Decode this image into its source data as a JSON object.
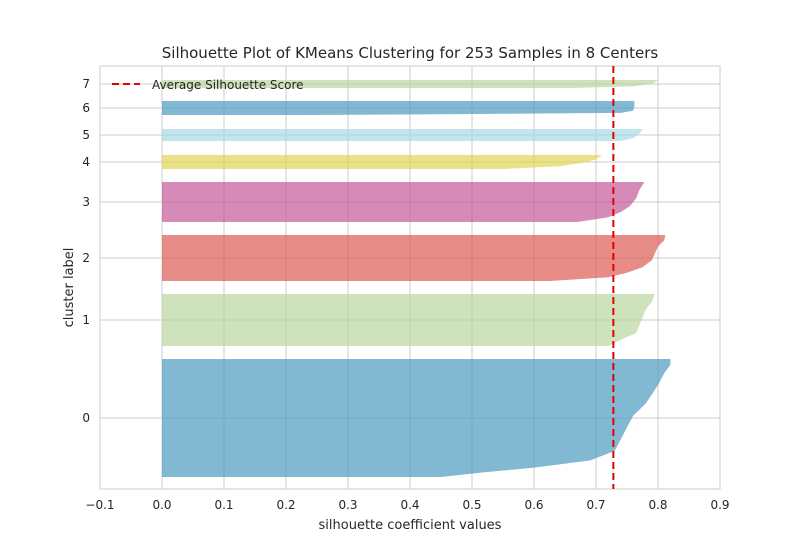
{
  "chart_data": {
    "type": "silhouette",
    "title": "Silhouette Plot of KMeans Clustering for 253 Samples in 8 Centers",
    "xlabel": "silhouette coefficient values",
    "ylabel": "cluster label",
    "xlim": [
      -0.1,
      0.9
    ],
    "xticks": [
      -0.1,
      0.0,
      0.1,
      0.2,
      0.3,
      0.4,
      0.5,
      0.6,
      0.7,
      0.8,
      0.9
    ],
    "xtick_labels": [
      "−0.1",
      "0.0",
      "0.1",
      "0.2",
      "0.3",
      "0.4",
      "0.5",
      "0.6",
      "0.7",
      "0.8",
      "0.9"
    ],
    "grid": true,
    "average_silhouette_score": 0.728,
    "legend": {
      "position": "top-left",
      "entries": [
        {
          "label": "Average Silhouette Score",
          "color": "#e50000",
          "style": "dashed"
        }
      ]
    },
    "clusters": [
      {
        "label": "0",
        "color": "#4c9bc0",
        "min": 0.45,
        "max": 0.82,
        "profile": [
          [
            0,
            0.82
          ],
          [
            0.05,
            0.82
          ],
          [
            0.12,
            0.81
          ],
          [
            0.22,
            0.8
          ],
          [
            0.3,
            0.79
          ],
          [
            0.38,
            0.78
          ],
          [
            0.48,
            0.76
          ],
          [
            0.58,
            0.75
          ],
          [
            0.68,
            0.74
          ],
          [
            0.78,
            0.73
          ],
          [
            0.86,
            0.69
          ],
          [
            0.92,
            0.6
          ],
          [
            0.96,
            0.52
          ],
          [
            1,
            0.45
          ]
        ]
      },
      {
        "label": "1",
        "color": "#b9d6a0",
        "min": 0.72,
        "max": 0.795,
        "profile": [
          [
            0,
            0.795
          ],
          [
            0.15,
            0.79
          ],
          [
            0.3,
            0.78
          ],
          [
            0.45,
            0.775
          ],
          [
            0.6,
            0.77
          ],
          [
            0.75,
            0.765
          ],
          [
            0.88,
            0.74
          ],
          [
            1,
            0.72
          ]
        ]
      },
      {
        "label": "2",
        "color": "#de5b55",
        "min": 0.625,
        "max": 0.812,
        "profile": [
          [
            0,
            0.812
          ],
          [
            0.12,
            0.81
          ],
          [
            0.25,
            0.8
          ],
          [
            0.4,
            0.795
          ],
          [
            0.55,
            0.79
          ],
          [
            0.7,
            0.775
          ],
          [
            0.82,
            0.75
          ],
          [
            0.92,
            0.72
          ],
          [
            1,
            0.625
          ]
        ]
      },
      {
        "label": "3",
        "color": "#c4589a",
        "min": 0.67,
        "max": 0.778,
        "profile": [
          [
            0,
            0.778
          ],
          [
            0.2,
            0.77
          ],
          [
            0.4,
            0.765
          ],
          [
            0.6,
            0.755
          ],
          [
            0.75,
            0.74
          ],
          [
            0.88,
            0.72
          ],
          [
            1,
            0.67
          ]
        ]
      },
      {
        "label": "4",
        "color": "#e0d653",
        "min": 0.55,
        "max": 0.71,
        "profile": [
          [
            0,
            0.71
          ],
          [
            0.3,
            0.7
          ],
          [
            0.55,
            0.68
          ],
          [
            0.8,
            0.64
          ],
          [
            1,
            0.55
          ]
        ]
      },
      {
        "label": "5",
        "color": "#a7d8e5",
        "min": 0.74,
        "max": 0.775,
        "profile": [
          [
            0,
            0.775
          ],
          [
            0.4,
            0.77
          ],
          [
            0.75,
            0.76
          ],
          [
            1,
            0.74
          ]
        ]
      },
      {
        "label": "6",
        "color": "#4c9bc0",
        "min": 0.225,
        "max": 0.762,
        "profile": [
          [
            0,
            0.762
          ],
          [
            0.35,
            0.762
          ],
          [
            0.7,
            0.76
          ],
          [
            0.85,
            0.74
          ],
          [
            0.95,
            0.45
          ],
          [
            1,
            0.225
          ]
        ]
      },
      {
        "label": "7",
        "color": "#b9d6a0",
        "min": 0.66,
        "max": 0.8,
        "profile": [
          [
            0,
            0.8
          ],
          [
            0.5,
            0.79
          ],
          [
            0.8,
            0.76
          ],
          [
            1,
            0.66
          ]
        ]
      }
    ]
  }
}
